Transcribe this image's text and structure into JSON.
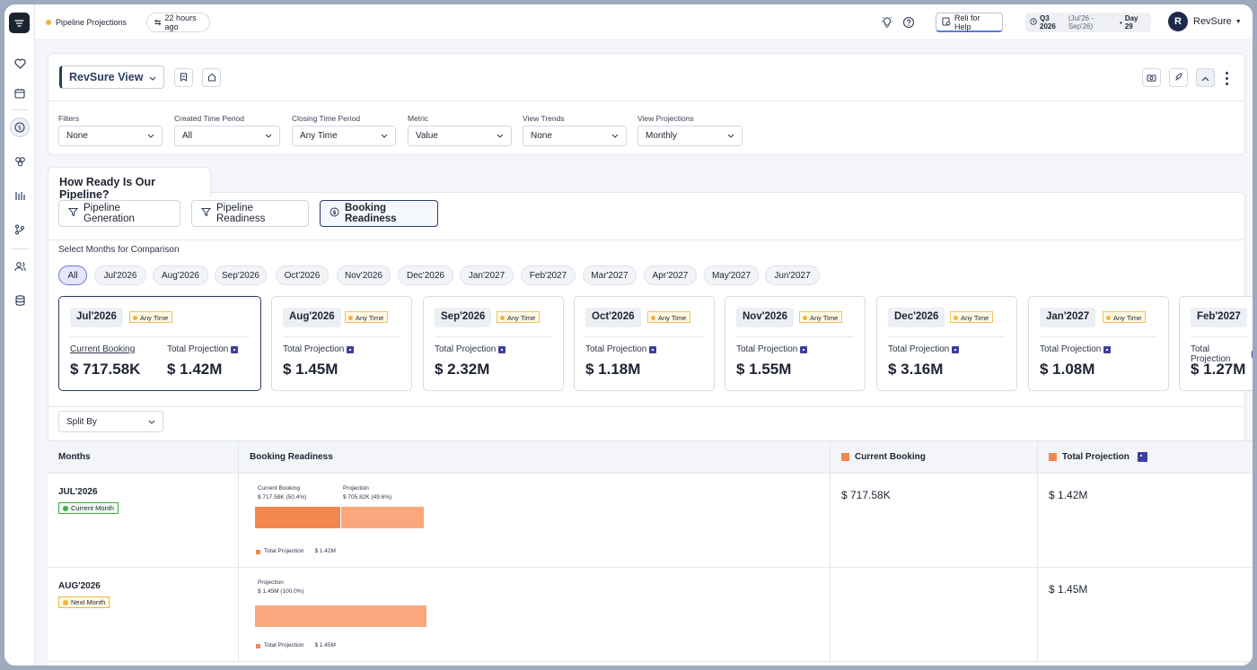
{
  "topbar": {
    "page_title": "Pipeline Projections",
    "updated": "22 hours ago",
    "help_label": "Reli for Help",
    "quarter": "Q3 2026",
    "quarter_range": "(Jul'26 - Sep'26)",
    "day_separator": "•",
    "day": "Day 29",
    "avatar_letter": "R",
    "user": "RevSure"
  },
  "view": {
    "name": "RevSure View"
  },
  "filters": [
    {
      "label": "Filters",
      "value": "None"
    },
    {
      "label": "Created Time Period",
      "value": "All"
    },
    {
      "label": "Closing Time Period",
      "value": "Any Time"
    },
    {
      "label": "Metric",
      "value": "Value"
    },
    {
      "label": "View Trends",
      "value": "None"
    },
    {
      "label": "View Projections",
      "value": "Monthly"
    }
  ],
  "section": {
    "title": "How Ready Is Our Pipeline?"
  },
  "tabs": [
    "Pipeline Generation",
    "Pipeline Readiness",
    "Booking Readiness"
  ],
  "selected_tab": "Booking Readiness",
  "compare_label": "Select Months for Comparison",
  "months": [
    "All",
    "Jul'2026",
    "Aug'2026",
    "Sep'2026",
    "Oct'2026",
    "Nov'2026",
    "Dec'2026",
    "Jan'2027",
    "Feb'2027",
    "Mar'2027",
    "Apr'2027",
    "May'2027",
    "Jun'2027"
  ],
  "badge_any_time": "Any Time",
  "labels": {
    "current_booking": "Current Booking",
    "total_projection": "Total Projection"
  },
  "month_cards": [
    {
      "month": "Jul'2026",
      "current_booking": "$ 717.58K",
      "total_projection": "$ 1.42M"
    },
    {
      "month": "Aug'2026",
      "total_projection": "$ 1.45M"
    },
    {
      "month": "Sep'2026",
      "total_projection": "$ 2.32M"
    },
    {
      "month": "Oct'2026",
      "total_projection": "$ 1.18M"
    },
    {
      "month": "Nov'2026",
      "total_projection": "$ 1.55M"
    },
    {
      "month": "Dec'2026",
      "total_projection": "$ 3.16M"
    },
    {
      "month": "Jan'2027",
      "total_projection": "$ 1.08M"
    },
    {
      "month": "Feb'2027",
      "total_projection": "$ 1.27M"
    }
  ],
  "split_by": "Split By",
  "table": {
    "headers": [
      "Months",
      "Booking Readiness",
      "Current Booking",
      "Total Projection"
    ],
    "rows": [
      {
        "month": "JUL'2026",
        "badge": "Current Month",
        "bar_label_1": "Current Booking",
        "bar_value_1": "$ 717.58K (50.4%)",
        "bar_label_2": "Projection",
        "bar_value_2": "$ 705.82K (49.6%)",
        "share_current": 0.504,
        "legend": "Total Projection",
        "legend_value": "$ 1.42M",
        "current_booking": "$ 717.58K",
        "total_projection": "$ 1.42M"
      },
      {
        "month": "AUG'2026",
        "badge": "Next Month",
        "bar_label_1": "Projection",
        "bar_value_1": "$ 1.45M (100.0%)",
        "share_current": 0,
        "legend": "Total Projection",
        "legend_value": "$ 1.45M",
        "current_booking": "",
        "total_projection": "$ 1.45M"
      }
    ]
  },
  "colors": {
    "current": "#f4864f",
    "projection": "#fba77e",
    "accent": "#2a3b63",
    "green": "#3fae49",
    "amber": "#f0b43c"
  }
}
